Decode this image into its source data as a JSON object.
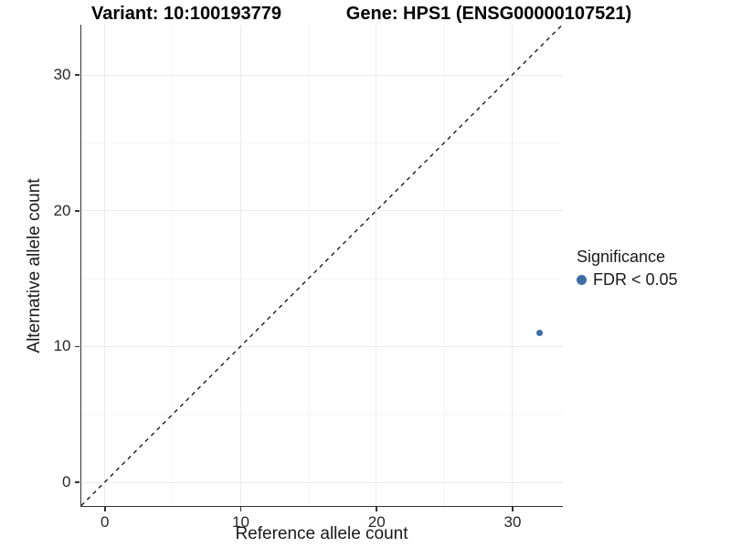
{
  "chart_data": {
    "type": "scatter",
    "title_left": "Variant: 10:100193779",
    "title_right": "Gene: HPS1 (ENSG00000107521)",
    "xlabel": "Reference allele count",
    "ylabel": "Alternative allele count",
    "xlim": [
      -1.7,
      33.7
    ],
    "ylim": [
      -1.7,
      33.7
    ],
    "xticks": [
      0,
      10,
      20,
      30
    ],
    "yticks": [
      0,
      10,
      20,
      30
    ],
    "xticks_minor": [
      5,
      15,
      25
    ],
    "yticks_minor": [
      5,
      15,
      25
    ],
    "grid": true,
    "points": [
      {
        "x": 32,
        "y": 11,
        "series": "FDR < 0.05"
      }
    ],
    "point_color": "#3d6da6",
    "reference_line": {
      "kind": "identity",
      "x1": -1.7,
      "y1": -1.7,
      "x2": 33.7,
      "y2": 33.7,
      "style": "dashed",
      "color": "#1a1a1a"
    },
    "legend": {
      "title": "Significance",
      "position": "right",
      "items": [
        {
          "label": "FDR < 0.05",
          "color": "#3d6da6"
        }
      ]
    }
  }
}
